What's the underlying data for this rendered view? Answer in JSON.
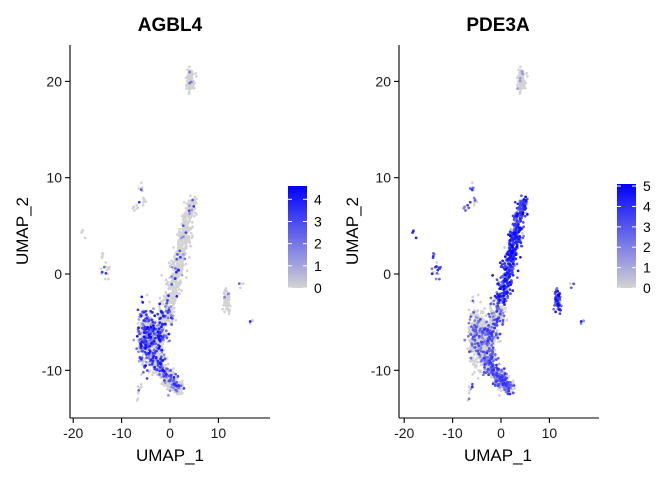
{
  "colors": {
    "low": "#d3d3d3",
    "high": "#0000ff",
    "mid": "#8b6fd6"
  },
  "chart_data": [
    {
      "type": "scatter",
      "title": "AGBL4",
      "xlabel": "UMAP_1",
      "ylabel": "UMAP_2",
      "xlim": [
        -20.5,
        19.5
      ],
      "ylim": [
        -14.5,
        24
      ],
      "xticks": [
        -20,
        -10,
        0,
        10
      ],
      "xtick_labels": [
        "-20",
        "-10",
        "0",
        "10"
      ],
      "yticks": [
        -10,
        0,
        10,
        20
      ],
      "ytick_labels": [
        "-10",
        "0",
        "10",
        "20"
      ],
      "legend_position": "right",
      "legend": {
        "min": 0,
        "max": 4.6,
        "ticks": [
          0,
          1,
          2,
          3,
          4
        ],
        "tick_labels": [
          "0",
          "1",
          "2",
          "3",
          "4"
        ]
      },
      "expression_pattern": "sparse; strongest in lower-left lobe of main cluster"
    },
    {
      "type": "scatter",
      "title": "PDE3A",
      "xlabel": "UMAP_1",
      "ylabel": "UMAP_2",
      "xlim": [
        -20.5,
        19.5
      ],
      "ylim": [
        -14.5,
        24
      ],
      "xticks": [
        -20,
        -10,
        0,
        10
      ],
      "xtick_labels": [
        "-20",
        "-10",
        "0",
        "10"
      ],
      "yticks": [
        -10,
        0,
        10,
        20
      ],
      "ytick_labels": [
        "-10",
        "0",
        "10",
        "20"
      ],
      "legend_position": "right",
      "legend": {
        "min": 0,
        "max": 5.1,
        "ticks": [
          0,
          1,
          2,
          3,
          4,
          5
        ],
        "tick_labels": [
          "0",
          "1",
          "2",
          "3",
          "4",
          "5"
        ]
      },
      "expression_pattern": "strong along upper stem of main cluster and right satellite cluster"
    }
  ]
}
